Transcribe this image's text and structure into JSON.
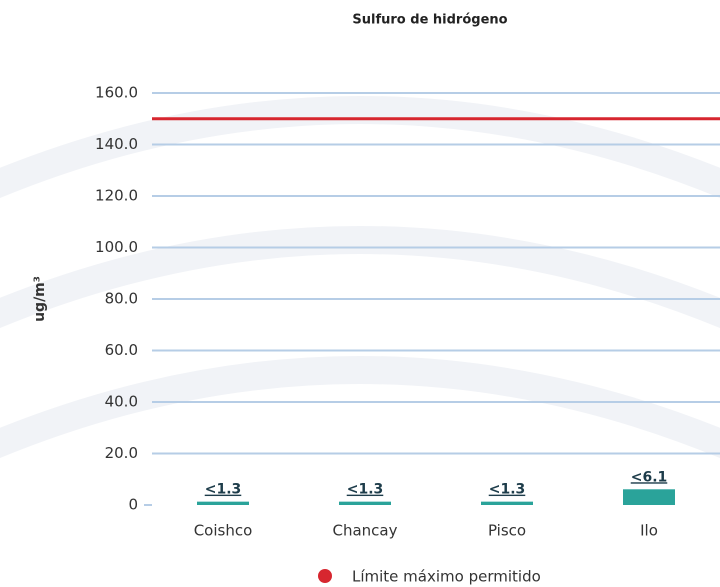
{
  "chart_data": {
    "type": "bar",
    "title": "Sulfuro de hidrógeno",
    "y_label": "ug/m³",
    "categories": [
      "Coishco",
      "Chancay",
      "Pisco",
      "Ilo"
    ],
    "values": [
      1.3,
      1.3,
      1.3,
      6.1
    ],
    "value_labels": [
      "<1.3",
      "<1.3",
      "<1.3",
      "<6.1"
    ],
    "color": "#2aa39a",
    "limit": {
      "name": "Límite máximo permitido",
      "value": 150,
      "color": "#d7262f"
    },
    "ylim": [
      0,
      160
    ],
    "yticks": [
      0,
      {
        "value": 20,
        "label": "20.0"
      },
      {
        "value": 40,
        "label": "40.0"
      },
      {
        "value": 60,
        "label": "60.0"
      },
      {
        "value": 80,
        "label": "80.0"
      },
      {
        "value": 100,
        "label": "100.0"
      },
      {
        "value": 120,
        "label": "120.0"
      },
      {
        "value": 140,
        "label": "140.0"
      },
      {
        "value": 160,
        "label": "160.0"
      }
    ],
    "grid": true
  }
}
